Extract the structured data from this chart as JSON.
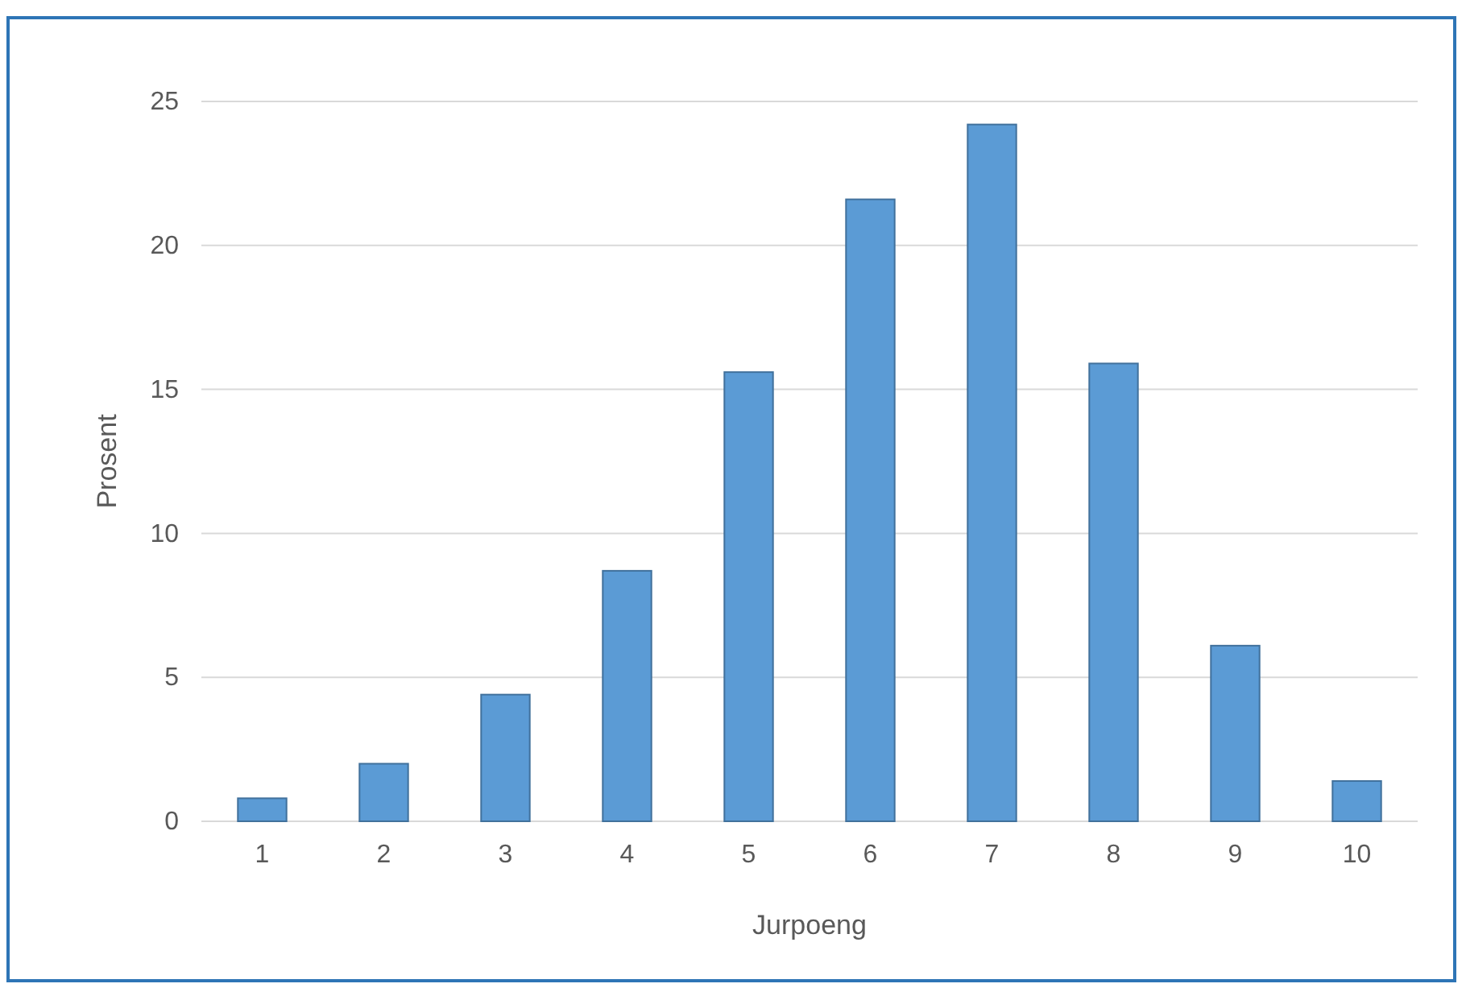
{
  "chart_data": {
    "type": "bar",
    "xlabel": "Jurpoeng",
    "ylabel": "Prosent",
    "categories": [
      "1",
      "2",
      "3",
      "4",
      "5",
      "6",
      "7",
      "8",
      "9",
      "10"
    ],
    "values": [
      0.8,
      2.0,
      4.4,
      8.7,
      15.6,
      21.6,
      24.2,
      15.9,
      6.1,
      1.4
    ],
    "color": "#5b9bd5",
    "ylim": [
      0,
      25
    ],
    "yticks": [
      0,
      5,
      10,
      15,
      20,
      25
    ],
    "grid": "y"
  }
}
